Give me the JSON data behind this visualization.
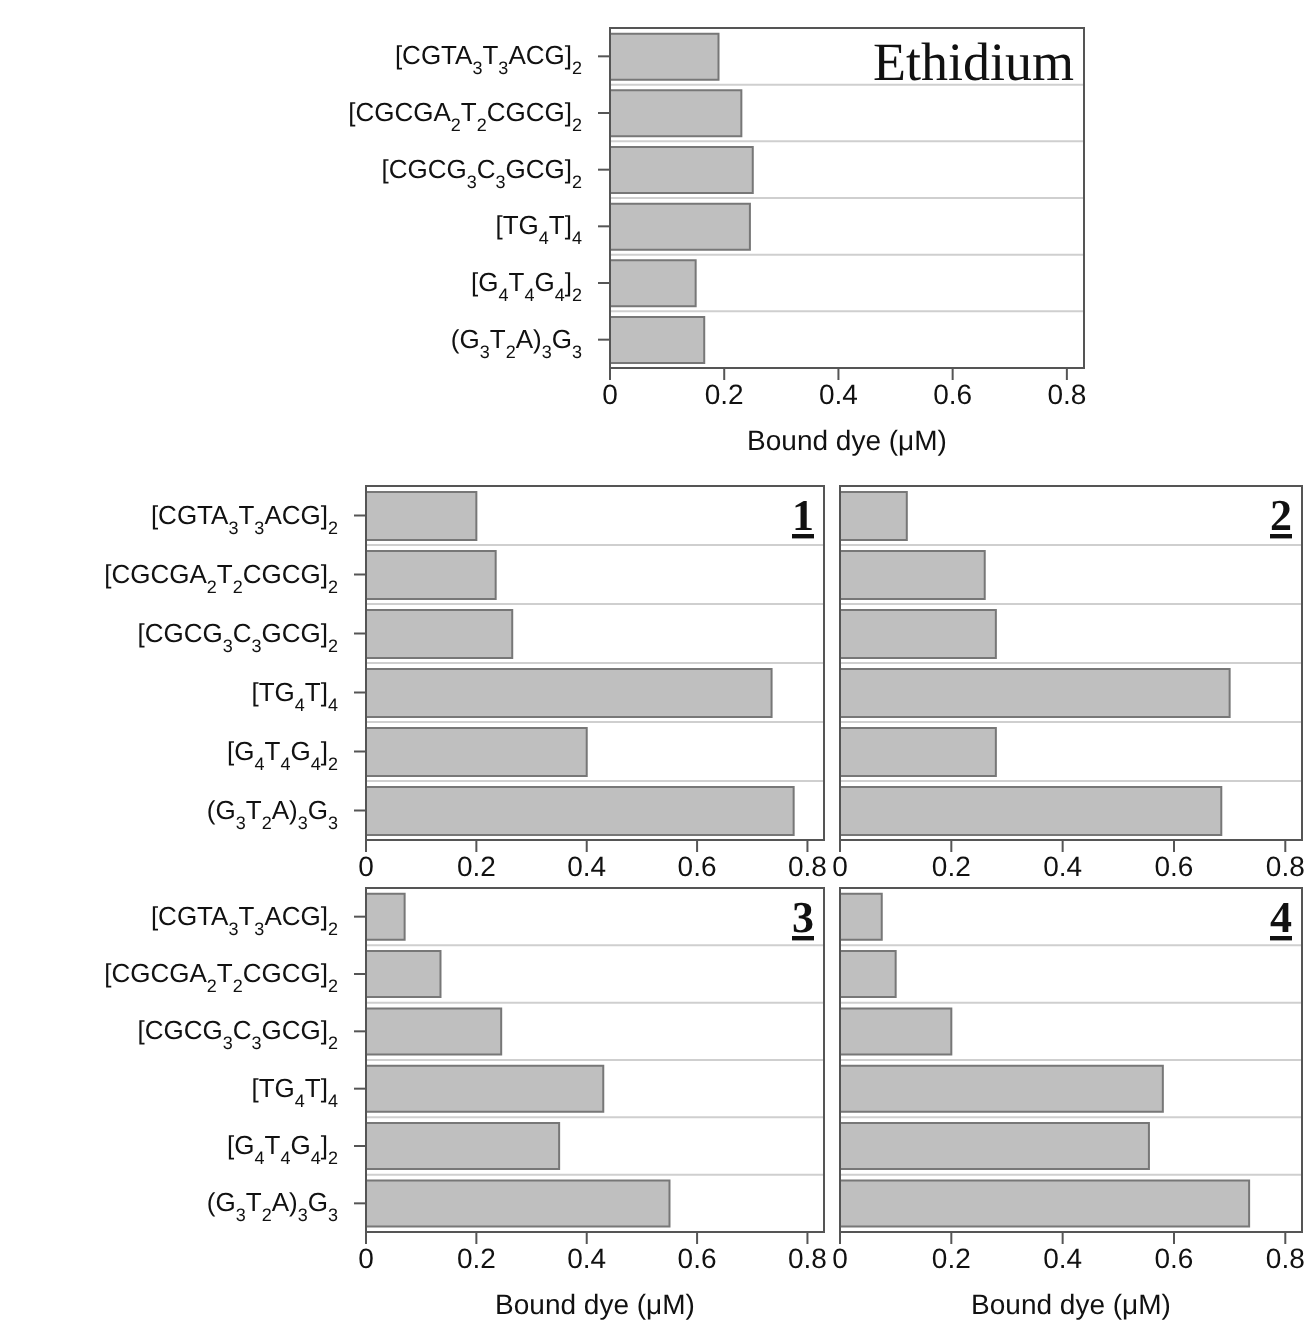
{
  "chart_data": [
    {
      "type": "bar",
      "orientation": "horizontal",
      "title": "Ethidium",
      "categories": [
        "[CGTA$_{3}$T$_{3}$ACG]$_{2}$",
        "[CGCGA$_{2}$T$_{2}$CGCG]$_{2}$",
        "[CGCG$_{3}$C$_{3}$GCG]$_{2}$",
        "[TG$_{4}$T]$_{4}$",
        "[G$_{4}$T$_{4}$G$_{4}$]$_{2}$",
        "(G$_{3}$T$_{2}$A)$_{3}$G$_{3}$"
      ],
      "values": [
        0.19,
        0.23,
        0.25,
        0.245,
        0.15,
        0.165
      ],
      "color": "#bfbfbf",
      "xlim": [
        0,
        0.83
      ],
      "xticks": [
        0,
        0.2,
        0.4,
        0.6,
        0.8
      ],
      "xlabel": "Bound dye (μM)",
      "grid": "y"
    },
    {
      "type": "bar",
      "orientation": "horizontal",
      "title": "1",
      "categories": [
        "[CGTA$_{3}$T$_{3}$ACG]$_{2}$",
        "[CGCGA$_{2}$T$_{2}$CGCG]$_{2}$",
        "[CGCG$_{3}$C$_{3}$GCG]$_{2}$",
        "[TG$_{4}$T]$_{4}$",
        "[G$_{4}$T$_{4}$G$_{4}$]$_{2}$",
        "(G$_{3}$T$_{2}$A)$_{3}$G$_{3}$"
      ],
      "values": [
        0.2,
        0.235,
        0.265,
        0.735,
        0.4,
        0.775
      ],
      "color": "#bfbfbf",
      "xlim": [
        0,
        0.83
      ],
      "xticks": [
        0,
        0.2,
        0.4,
        0.6,
        0.8
      ],
      "grid": "y"
    },
    {
      "type": "bar",
      "orientation": "horizontal",
      "title": "2",
      "categories": [
        null,
        null,
        null,
        null,
        null,
        null
      ],
      "values": [
        0.12,
        0.26,
        0.28,
        0.7,
        0.28,
        0.685
      ],
      "color": "#bfbfbf",
      "xlim": [
        0,
        0.83
      ],
      "xticks": [
        0,
        0.2,
        0.4,
        0.6,
        0.8
      ],
      "grid": "y",
      "tick_labels": "x"
    },
    {
      "type": "bar",
      "orientation": "horizontal",
      "title": "3",
      "categories": [
        "[CGTA$_{3}$T$_{3}$ACG]$_{2}$",
        "[CGCGA$_{2}$T$_{2}$CGCG]$_{2}$",
        "[CGCG$_{3}$C$_{3}$GCG]$_{2}$",
        "[TG$_{4}$T]$_{4}$",
        "[G$_{4}$T$_{4}$G$_{4}$]$_{2}$",
        "(G$_{3}$T$_{2}$A)$_{3}$G$_{3}$"
      ],
      "values": [
        0.07,
        0.135,
        0.245,
        0.43,
        0.35,
        0.55
      ],
      "color": "#bfbfbf",
      "xlim": [
        0,
        0.83
      ],
      "xticks": [
        0,
        0.2,
        0.4,
        0.6,
        0.8
      ],
      "xlabel": "Bound dye (μM)",
      "grid": "y"
    },
    {
      "type": "bar",
      "orientation": "horizontal",
      "title": "4",
      "categories": [
        null,
        null,
        null,
        null,
        null,
        null
      ],
      "values": [
        0.075,
        0.1,
        0.2,
        0.58,
        0.555,
        0.735
      ],
      "color": "#bfbfbf",
      "xlim": [
        0,
        0.83
      ],
      "xticks": [
        0,
        0.2,
        0.4,
        0.6,
        0.8
      ],
      "xlabel": "Bound dye (μM)",
      "grid": "y",
      "tick_labels": "x"
    }
  ]
}
